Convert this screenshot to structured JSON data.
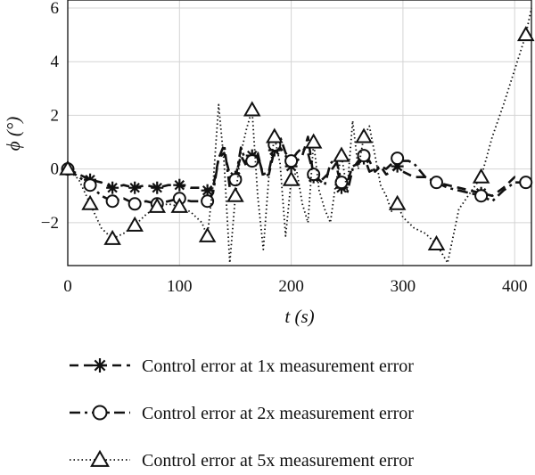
{
  "chart_data": {
    "type": "line",
    "xlabel": "t (s)",
    "ylabel": "ϕ (°)",
    "xlim": [
      0,
      415
    ],
    "ylim": [
      -3.6,
      6.3
    ],
    "xticks": [
      0,
      100,
      200,
      300,
      400
    ],
    "yticks": [
      -2,
      0,
      2,
      4,
      6
    ],
    "ytick_labels": [
      "−2",
      "0",
      "2",
      "4",
      "6"
    ],
    "grid": true,
    "legend_position": "below",
    "series": [
      {
        "name": "Control error at 1x measurement error",
        "line_style": "dashed",
        "marker": "asterisk",
        "x": [
          0,
          10,
          20,
          30,
          40,
          50,
          60,
          70,
          80,
          90,
          100,
          110,
          120,
          125,
          130,
          135,
          140,
          145,
          150,
          155,
          160,
          165,
          170,
          175,
          180,
          185,
          190,
          195,
          200,
          205,
          210,
          215,
          220,
          225,
          230,
          235,
          240,
          245,
          250,
          255,
          260,
          265,
          270,
          275,
          280,
          285,
          290,
          295,
          300,
          305,
          310,
          320,
          330,
          340,
          350,
          360,
          370,
          380,
          390,
          400,
          410,
          415
        ],
        "y": [
          0,
          -0.2,
          -0.4,
          -0.5,
          -0.7,
          -0.6,
          -0.7,
          -0.6,
          -0.7,
          -0.6,
          -0.6,
          -0.7,
          -0.7,
          -0.8,
          -0.7,
          0.4,
          0.6,
          -0.2,
          -0.3,
          0.5,
          0.1,
          0.5,
          0.6,
          -0.3,
          -0.2,
          0.7,
          0.8,
          0.5,
          0.1,
          0.3,
          0.5,
          1.2,
          -0.3,
          -0.5,
          -0.3,
          -0.1,
          0.2,
          -0.7,
          -0.5,
          0.1,
          0.2,
          0.4,
          0.3,
          -0.1,
          0.1,
          -0.2,
          -0.1,
          0.1,
          -0.1,
          -0.2,
          -0.3,
          -0.3,
          -0.5,
          -0.6,
          -0.7,
          -0.8,
          -0.9,
          -1.0,
          -0.7,
          -0.3,
          -0.5,
          -0.7
        ]
      },
      {
        "name": "Control error at 2x measurement error",
        "line_style": "dash-dot",
        "marker": "circle",
        "x": [
          0,
          10,
          20,
          30,
          40,
          50,
          60,
          70,
          80,
          90,
          100,
          110,
          120,
          125,
          130,
          135,
          140,
          145,
          150,
          155,
          160,
          165,
          170,
          175,
          180,
          185,
          190,
          195,
          200,
          205,
          210,
          215,
          220,
          225,
          230,
          235,
          240,
          245,
          250,
          255,
          260,
          265,
          270,
          275,
          280,
          285,
          290,
          295,
          300,
          305,
          310,
          320,
          330,
          340,
          350,
          360,
          370,
          380,
          390,
          400,
          410,
          415
        ],
        "y": [
          0,
          -0.3,
          -0.6,
          -1.0,
          -1.2,
          -1.1,
          -1.3,
          -1.2,
          -1.3,
          -1.2,
          -1.1,
          -1.2,
          -1.2,
          -1.2,
          -0.9,
          0.4,
          0.9,
          -0.7,
          -0.4,
          0.8,
          0.2,
          0.3,
          0.5,
          -0.2,
          -0.1,
          0.9,
          1.2,
          0.6,
          0.3,
          0.6,
          0.8,
          0.6,
          -0.2,
          -0.4,
          -0.6,
          0.2,
          0.4,
          -0.5,
          -0.9,
          0.0,
          0.3,
          0.5,
          -0.1,
          0.0,
          0.1,
          0.0,
          0.2,
          0.4,
          0.3,
          0.3,
          0.2,
          -0.3,
          -0.5,
          -0.7,
          -0.8,
          -0.9,
          -1.0,
          -1.2,
          -0.8,
          -0.5,
          -0.5,
          -0.5
        ]
      },
      {
        "name": "Control error at 5x measurement error",
        "line_style": "dotted",
        "marker": "triangle",
        "x": [
          0,
          10,
          20,
          30,
          40,
          50,
          60,
          70,
          80,
          90,
          100,
          110,
          120,
          125,
          130,
          135,
          140,
          145,
          150,
          155,
          160,
          165,
          170,
          175,
          180,
          185,
          190,
          195,
          200,
          205,
          210,
          215,
          220,
          225,
          230,
          235,
          240,
          245,
          250,
          255,
          260,
          265,
          270,
          275,
          280,
          285,
          290,
          295,
          300,
          305,
          310,
          320,
          330,
          340,
          350,
          360,
          370,
          380,
          390,
          400,
          410,
          415
        ],
        "y": [
          0,
          -0.4,
          -1.3,
          -2.2,
          -2.6,
          -2.4,
          -2.1,
          -1.7,
          -1.4,
          -1.3,
          -1.4,
          -1.6,
          -2.0,
          -2.5,
          -0.6,
          2.4,
          0.2,
          -3.5,
          -1.0,
          0.6,
          1.5,
          2.2,
          -1.0,
          -3.0,
          -0.3,
          1.2,
          0.2,
          -2.5,
          -0.4,
          -0.1,
          -1.3,
          -2.0,
          1.0,
          -0.8,
          -1.5,
          -2.0,
          -0.5,
          0.5,
          -0.8,
          1.8,
          0.0,
          1.2,
          1.6,
          0.5,
          -0.6,
          -1.0,
          -1.6,
          -1.3,
          -1.8,
          -2.0,
          -2.2,
          -2.4,
          -2.8,
          -3.5,
          -1.5,
          -0.9,
          -0.3,
          1.2,
          2.4,
          3.7,
          5.0,
          6.0
        ]
      }
    ]
  }
}
